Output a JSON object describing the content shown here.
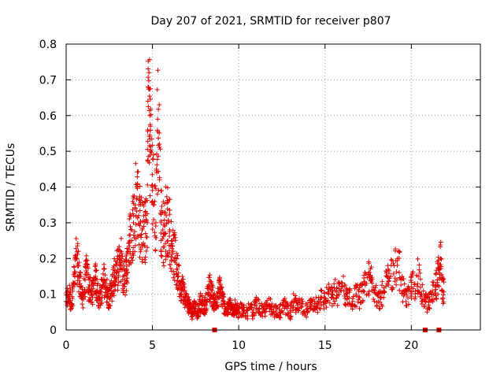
{
  "chart_data": {
    "type": "scatter",
    "title": "Day 207 of 2021, SRMTID for receiver p807",
    "xlabel": "GPS time / hours",
    "ylabel": "SRMTID / TECUs",
    "xlim": [
      0,
      24
    ],
    "ylim": [
      0,
      0.8
    ],
    "x_ticks": [
      0,
      5,
      10,
      15,
      20
    ],
    "y_ticks": [
      0,
      0.1,
      0.2,
      0.3,
      0.4,
      0.5,
      0.6,
      0.7,
      0.8
    ],
    "x_tick_labels": [
      "0",
      "5",
      "10",
      "15",
      "20"
    ],
    "y_tick_labels": [
      "0",
      "0.1",
      "0.2",
      "0.3",
      "0.4",
      "0.5",
      "0.6",
      "0.7",
      "0.8"
    ],
    "grid": true,
    "marker": "+",
    "color": "#e00000",
    "series": [
      {
        "name": "SRMTID",
        "x": [
          0.0,
          0.1,
          0.2,
          0.3,
          0.4,
          0.5,
          0.6,
          0.7,
          0.8,
          0.9,
          1.0,
          1.1,
          1.2,
          1.3,
          1.4,
          1.5,
          1.6,
          1.7,
          1.8,
          1.9,
          2.0,
          2.1,
          2.2,
          2.3,
          2.4,
          2.5,
          2.6,
          2.7,
          2.8,
          2.9,
          3.0,
          3.1,
          3.2,
          3.3,
          3.4,
          3.5,
          3.6,
          3.7,
          3.8,
          3.9,
          4.0,
          4.1,
          4.2,
          4.3,
          4.4,
          4.5,
          4.6,
          4.7,
          4.75,
          4.8,
          4.85,
          4.9,
          5.0,
          5.1,
          5.2,
          5.3,
          5.4,
          5.5,
          5.6,
          5.7,
          5.8,
          5.9,
          6.0,
          6.1,
          6.2,
          6.3,
          6.4,
          6.5,
          6.6,
          6.7,
          6.8,
          6.9,
          7.0,
          7.1,
          7.2,
          7.3,
          7.4,
          7.5,
          7.6,
          7.7,
          7.8,
          7.9,
          8.0,
          8.1,
          8.2,
          8.3,
          8.4,
          8.5,
          8.6,
          8.7,
          8.8,
          8.9,
          9.0,
          9.1,
          9.2,
          9.3,
          9.4,
          9.5,
          9.6,
          9.7,
          9.8,
          9.9,
          10.0,
          10.2,
          10.4,
          10.6,
          10.8,
          11.0,
          11.2,
          11.4,
          11.6,
          11.8,
          12.0,
          12.2,
          12.4,
          12.6,
          12.8,
          13.0,
          13.2,
          13.4,
          13.6,
          13.8,
          14.0,
          14.2,
          14.4,
          14.6,
          14.8,
          15.0,
          15.2,
          15.4,
          15.6,
          15.8,
          16.0,
          16.2,
          16.4,
          16.6,
          16.8,
          17.0,
          17.2,
          17.4,
          17.6,
          17.8,
          18.0,
          18.2,
          18.4,
          18.6,
          18.8,
          19.0,
          19.2,
          19.4,
          19.6,
          19.8,
          20.0,
          20.2,
          20.4,
          20.6,
          20.8,
          21.0,
          21.2,
          21.4,
          21.5,
          21.6,
          21.7,
          21.8
        ],
        "y": [
          0.08,
          0.09,
          0.1,
          0.07,
          0.12,
          0.15,
          0.2,
          0.18,
          0.13,
          0.1,
          0.09,
          0.14,
          0.16,
          0.12,
          0.11,
          0.1,
          0.13,
          0.15,
          0.11,
          0.09,
          0.1,
          0.12,
          0.14,
          0.13,
          0.1,
          0.09,
          0.11,
          0.13,
          0.15,
          0.16,
          0.17,
          0.18,
          0.2,
          0.15,
          0.14,
          0.17,
          0.22,
          0.25,
          0.28,
          0.3,
          0.35,
          0.4,
          0.32,
          0.3,
          0.28,
          0.29,
          0.27,
          0.3,
          0.68,
          0.72,
          0.6,
          0.5,
          0.4,
          0.35,
          0.3,
          0.59,
          0.52,
          0.3,
          0.28,
          0.27,
          0.32,
          0.3,
          0.28,
          0.25,
          0.22,
          0.2,
          0.17,
          0.15,
          0.13,
          0.12,
          0.11,
          0.09,
          0.08,
          0.07,
          0.06,
          0.05,
          0.07,
          0.06,
          0.05,
          0.06,
          0.08,
          0.07,
          0.06,
          0.08,
          0.1,
          0.12,
          0.11,
          0.09,
          0.08,
          0.07,
          0.09,
          0.12,
          0.1,
          0.08,
          0.06,
          0.05,
          0.06,
          0.07,
          0.06,
          0.05,
          0.07,
          0.06,
          0.05,
          0.06,
          0.04,
          0.06,
          0.05,
          0.07,
          0.06,
          0.05,
          0.06,
          0.07,
          0.05,
          0.06,
          0.05,
          0.07,
          0.06,
          0.05,
          0.08,
          0.06,
          0.07,
          0.05,
          0.06,
          0.07,
          0.08,
          0.07,
          0.09,
          0.08,
          0.1,
          0.09,
          0.11,
          0.1,
          0.12,
          0.1,
          0.09,
          0.08,
          0.1,
          0.09,
          0.11,
          0.13,
          0.15,
          0.12,
          0.1,
          0.09,
          0.11,
          0.13,
          0.15,
          0.18,
          0.2,
          0.14,
          0.1,
          0.09,
          0.12,
          0.13,
          0.15,
          0.1,
          0.08,
          0.07,
          0.1,
          0.12,
          0.14,
          0.16,
          0.2,
          0.11
        ]
      }
    ],
    "bottom_markers": [
      {
        "x": 8.6,
        "label": ""
      },
      {
        "x": 20.8,
        "label": ""
      },
      {
        "x": 21.6,
        "label": ""
      }
    ]
  }
}
